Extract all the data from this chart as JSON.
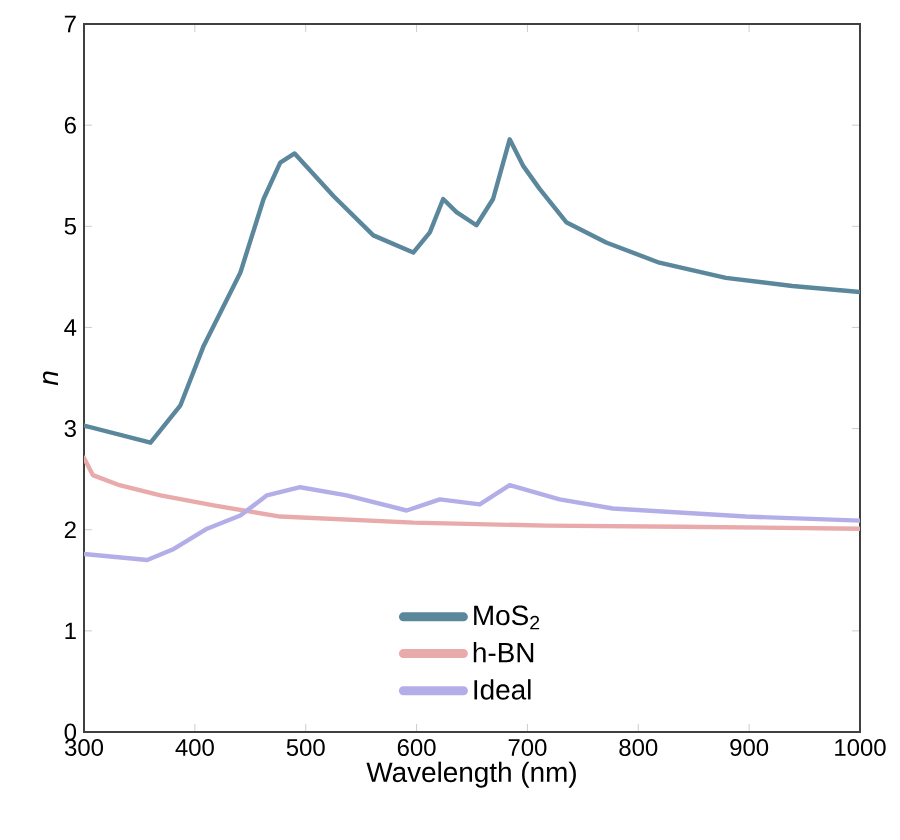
{
  "chart_data": {
    "type": "line",
    "xlabel": "Wavelength (nm)",
    "ylabel": "n",
    "xlim": [
      300,
      1000
    ],
    "ylim": [
      0,
      7
    ],
    "xticks": [
      300,
      400,
      500,
      600,
      700,
      800,
      900,
      1000
    ],
    "yticks": [
      0,
      1,
      2,
      3,
      4,
      5,
      6,
      7
    ],
    "legend": "bottom",
    "grid": false,
    "marker": "none",
    "line_style": "solid",
    "series": [
      {
        "name": "MoS$_{2}$",
        "color": "#5b879c",
        "x": [
          300,
          360,
          387,
          408,
          441,
          462,
          477,
          490,
          525,
          561,
          597,
          612,
          624,
          636,
          654,
          669,
          684,
          696,
          711,
          735,
          771,
          819,
          879,
          939,
          1000
        ],
        "values": [
          3.03,
          2.86,
          3.23,
          3.82,
          4.54,
          5.27,
          5.63,
          5.72,
          5.3,
          4.91,
          4.74,
          4.94,
          5.27,
          5.14,
          5.01,
          5.27,
          5.86,
          5.6,
          5.37,
          5.04,
          4.84,
          4.64,
          4.49,
          4.41,
          4.35
        ]
      },
      {
        "name": "h-BN",
        "color": "#e8aaaa",
        "x": [
          300,
          308,
          332,
          369,
          417,
          477,
          597,
          717,
          838,
          1000
        ],
        "values": [
          2.71,
          2.54,
          2.44,
          2.34,
          2.24,
          2.13,
          2.07,
          2.04,
          2.03,
          2.01
        ]
      },
      {
        "name": "Ideal",
        "color": "#b3aee8",
        "x": [
          300,
          357,
          381,
          411,
          441,
          465,
          495,
          537,
          591,
          621,
          657,
          684,
          729,
          777,
          897,
          1000
        ],
        "values": [
          1.76,
          1.7,
          1.81,
          2.01,
          2.14,
          2.34,
          2.42,
          2.34,
          2.19,
          2.3,
          2.25,
          2.44,
          2.3,
          2.21,
          2.13,
          2.09
        ]
      }
    ]
  }
}
